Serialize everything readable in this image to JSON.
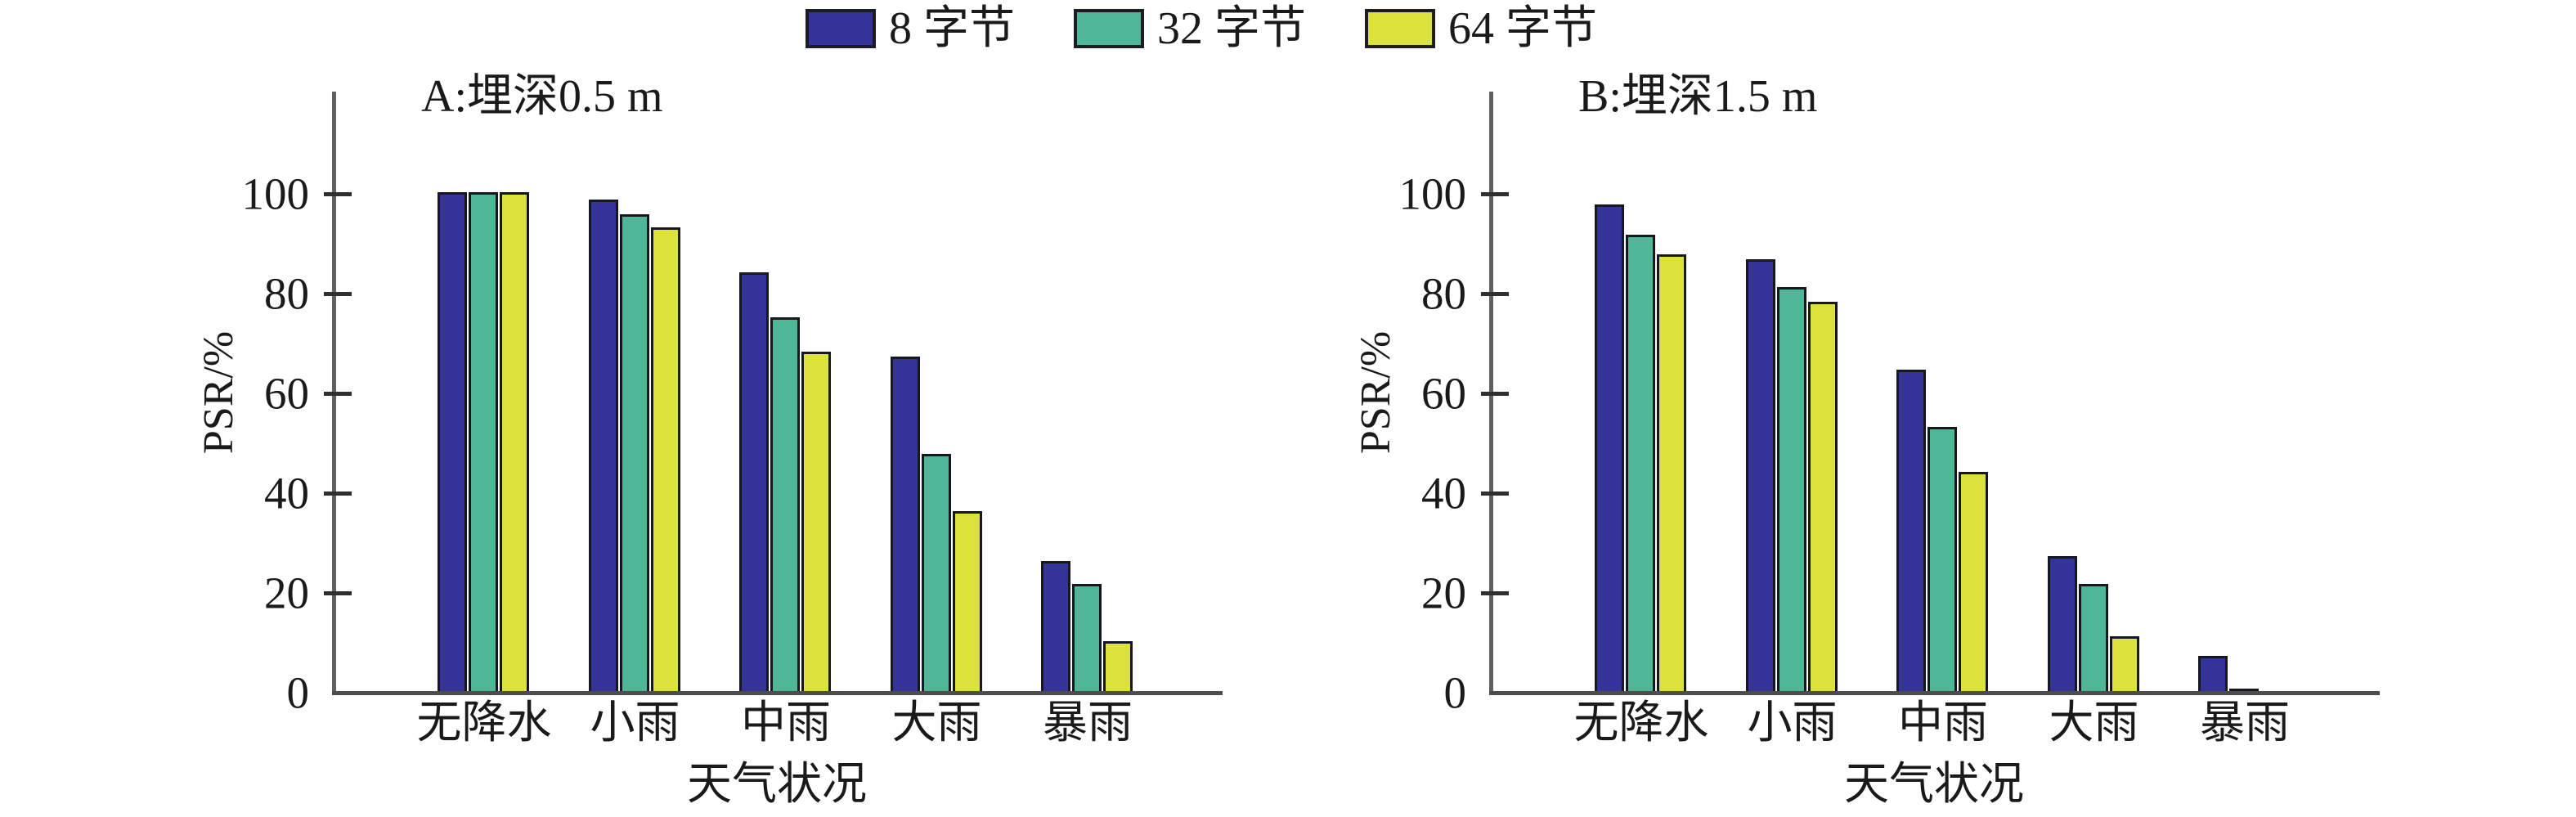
{
  "legend": {
    "items": [
      {
        "label": "8 字节",
        "color": "#34349a"
      },
      {
        "label": "32 字节",
        "color": "#4fb795"
      },
      {
        "label": "64 字节",
        "color": "#dbe23c"
      }
    ]
  },
  "chart_data": [
    {
      "type": "bar",
      "panel_label": "A:埋深0.5 m",
      "xlabel": "天气状况",
      "ylabel": "PSR/%",
      "categories": [
        "无降水",
        "小雨",
        "中雨",
        "大雨",
        "暴雨"
      ],
      "series": [
        {
          "name": "8 字节",
          "color": "#34349a",
          "values": [
            100,
            98.5,
            84,
            67,
            26
          ]
        },
        {
          "name": "32 字节",
          "color": "#4fb795",
          "values": [
            100,
            95.5,
            75,
            47.5,
            21.5
          ]
        },
        {
          "name": "64 字节",
          "color": "#dbe23c",
          "values": [
            100,
            93,
            68,
            36,
            10
          ]
        }
      ],
      "yticks": [
        0,
        20,
        40,
        60,
        80,
        100
      ],
      "ylim": [
        0,
        120
      ],
      "grid": false,
      "legend_position": "top-center"
    },
    {
      "type": "bar",
      "panel_label": "B:埋深1.5 m",
      "xlabel": "天气状况",
      "ylabel": "PSR/%",
      "categories": [
        "无降水",
        "小雨",
        "中雨",
        "大雨",
        "暴雨"
      ],
      "series": [
        {
          "name": "8 字节",
          "color": "#34349a",
          "values": [
            97.5,
            86.5,
            64.5,
            27,
            7
          ]
        },
        {
          "name": "32 字节",
          "color": "#4fb795",
          "values": [
            91.5,
            81,
            53,
            21.5,
            0.5
          ]
        },
        {
          "name": "64 字节",
          "color": "#dbe23c",
          "values": [
            87.5,
            78,
            44,
            11,
            0
          ]
        }
      ],
      "yticks": [
        0,
        20,
        40,
        60,
        80,
        100
      ],
      "ylim": [
        0,
        120
      ],
      "grid": false,
      "legend_position": "top-center"
    }
  ]
}
